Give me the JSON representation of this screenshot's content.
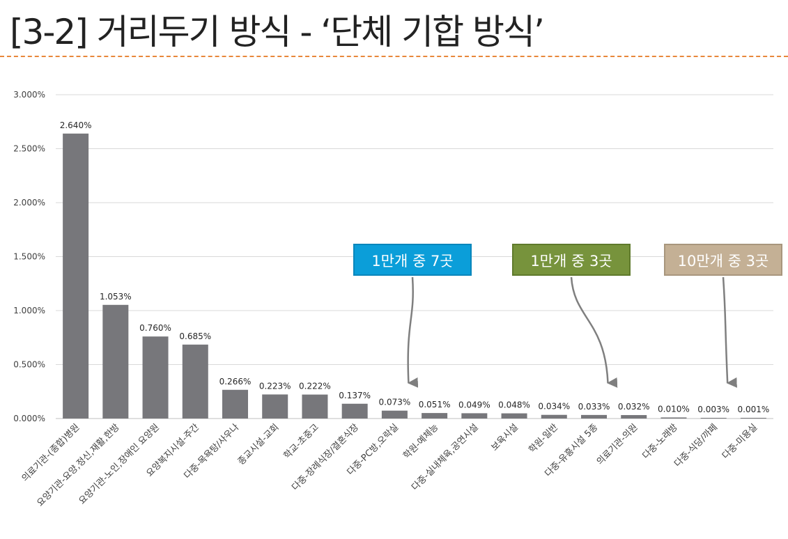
{
  "title": "[3-2] 거리두기 방식 - ‘단체 기합 방식’",
  "colors": {
    "accent": "#e8873a",
    "bar": "#77777b",
    "grid": "#d9d9d9",
    "callout_blue": "#0b9ed9",
    "callout_green": "#77933c",
    "callout_tan": "#c4b095",
    "arrow": "#7f7f7f"
  },
  "callouts": [
    {
      "label": "1만개 중 7곳",
      "target_category": "다중-PC방,오락실"
    },
    {
      "label": "1만개 중 3곳",
      "target_category": "다중-유흥시설 5종"
    },
    {
      "label": "10만개 중 3곳",
      "target_category": "다중-식당/까페"
    }
  ],
  "chart_data": {
    "type": "bar",
    "categories": [
      "의료기관-(종합)병원",
      "요양기관-요양,정신,재활,한방",
      "요양기관-노인,장애인 요양원",
      "요양복지시설-주간",
      "다중-목욕탕/사우나",
      "종교시설-교회",
      "학교-초중고",
      "다중-장례식장/결혼식장",
      "다중-PC방,오락실",
      "학원-예체능",
      "다중-실내체육,공연시설",
      "보육시설",
      "학원-일반",
      "다중-유흥시설 5종",
      "의료기관-의원",
      "다중-노래방",
      "다중-식당/까페",
      "다중-미용실"
    ],
    "values": [
      2.64,
      1.053,
      0.76,
      0.685,
      0.266,
      0.223,
      0.222,
      0.137,
      0.073,
      0.051,
      0.049,
      0.048,
      0.034,
      0.033,
      0.032,
      0.01,
      0.003,
      0.001
    ],
    "data_labels": [
      "2.640%",
      "1.053%",
      "0.760%",
      "0.685%",
      "0.266%",
      "0.223%",
      "0.222%",
      "0.137%",
      "0.073%",
      "0.051%",
      "0.049%",
      "0.048%",
      "0.034%",
      "0.033%",
      "0.032%",
      "0.010%",
      "0.003%",
      "0.001%"
    ],
    "yticks": [
      0,
      0.5,
      1.0,
      1.5,
      2.0,
      2.5,
      3.0
    ],
    "ytick_labels": [
      "0.000%",
      "0.500%",
      "1.000%",
      "1.500%",
      "2.000%",
      "2.500%",
      "3.000%"
    ],
    "ylim": [
      0,
      3.0
    ],
    "grid": true,
    "legend": "none"
  }
}
